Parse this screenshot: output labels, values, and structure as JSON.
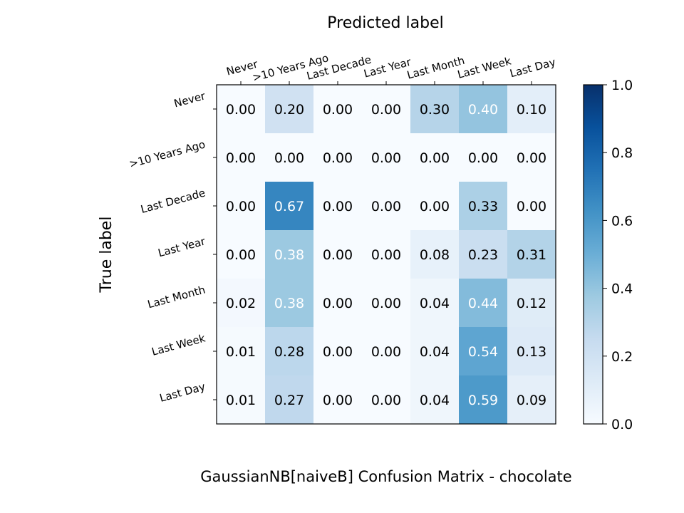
{
  "chart_data": {
    "type": "heatmap",
    "title": "GaussianNB[naiveB]  Confusion Matrix - chocolate",
    "xlabel": "Predicted label",
    "ylabel": "True label",
    "x_categories": [
      "Never",
      ">10 Years Ago",
      "Last Decade",
      "Last Year",
      "Last Month",
      "Last Week",
      "Last Day"
    ],
    "y_categories": [
      "Never",
      ">10 Years Ago",
      "Last Decade",
      "Last Year",
      "Last Month",
      "Last Week",
      "Last Day"
    ],
    "values": [
      [
        0.0,
        0.2,
        0.0,
        0.0,
        0.3,
        0.4,
        0.1
      ],
      [
        0.0,
        0.0,
        0.0,
        0.0,
        0.0,
        0.0,
        0.0
      ],
      [
        0.0,
        0.67,
        0.0,
        0.0,
        0.0,
        0.33,
        0.0
      ],
      [
        0.0,
        0.38,
        0.0,
        0.0,
        0.08,
        0.23,
        0.31
      ],
      [
        0.02,
        0.38,
        0.0,
        0.0,
        0.04,
        0.44,
        0.12
      ],
      [
        0.01,
        0.28,
        0.0,
        0.0,
        0.04,
        0.54,
        0.13
      ],
      [
        0.01,
        0.27,
        0.0,
        0.0,
        0.04,
        0.59,
        0.09
      ]
    ],
    "colorbar": {
      "range": [
        0.0,
        1.0
      ],
      "ticks": [
        "0.0",
        "0.2",
        "0.4",
        "0.6",
        "0.8",
        "1.0"
      ],
      "colormap": "Blues",
      "low_color": "#f7fbff",
      "high_color": "#08306b"
    },
    "x_tick_position": "top",
    "grid": false
  }
}
